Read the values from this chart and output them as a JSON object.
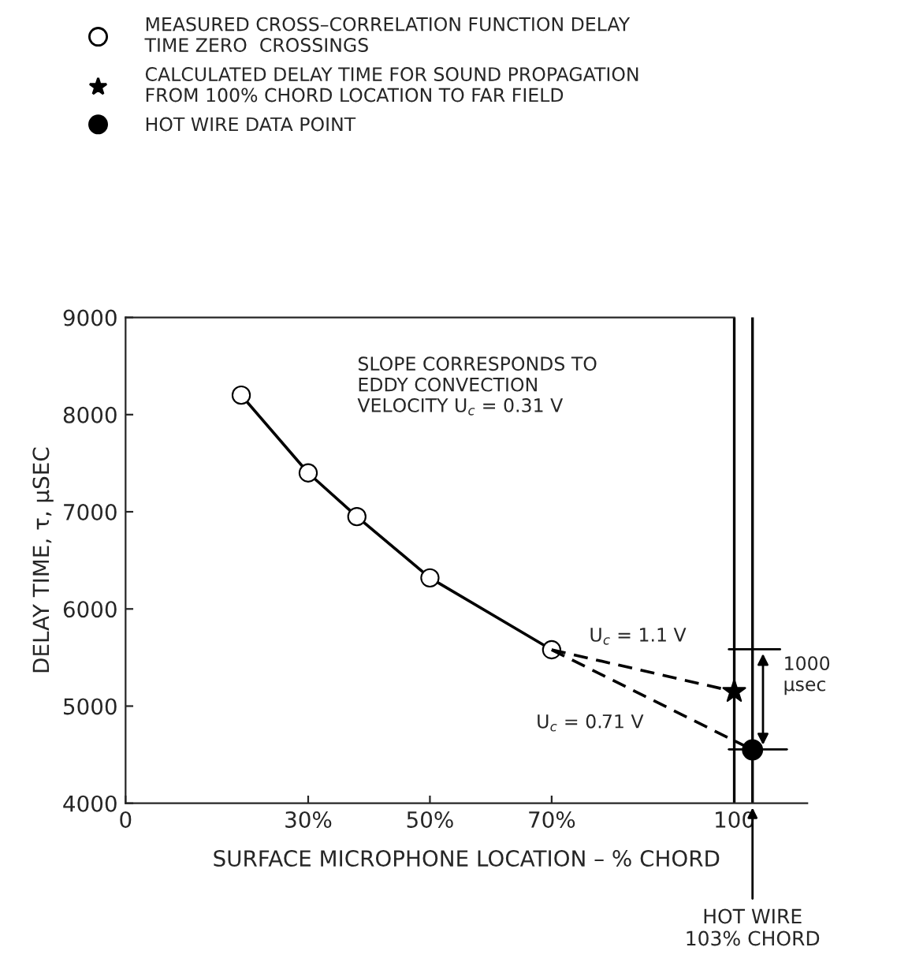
{
  "chart_data": {
    "type": "line",
    "xlabel": "SURFACE MICROPHONE LOCATION – % CHORD",
    "ylabel": "DELAY TIME, τ, μSEC",
    "xlim": [
      0,
      112
    ],
    "ylim": [
      4000,
      9000
    ],
    "xticks": [
      {
        "value": 0,
        "label": "0"
      },
      {
        "value": 30,
        "label": "30%"
      },
      {
        "value": 50,
        "label": "50%"
      },
      {
        "value": 70,
        "label": "70%"
      },
      {
        "value": 100,
        "label": "100"
      }
    ],
    "yticks": [
      4000,
      5000,
      6000,
      7000,
      8000,
      9000
    ],
    "grid": false,
    "legend": "top",
    "series": [
      {
        "name": "MEASURED CROSS–CORRELATION FUNCTION DELAY\nTIME ZERO  CROSSINGS",
        "marker": "circle",
        "line_style": "solid",
        "color": "#000000",
        "x": [
          19,
          30,
          38,
          50,
          70
        ],
        "values": [
          8200,
          7400,
          6950,
          6320,
          5580
        ]
      },
      {
        "type": "line",
        "marker": "none",
        "line_style": "dashed",
        "color": "#000000",
        "x": [
          70,
          100
        ],
        "values": [
          5580,
          5150
        ]
      },
      {
        "type": "line",
        "marker": "none",
        "line_style": "dashed",
        "color": "#000000",
        "x": [
          70,
          103
        ],
        "values": [
          5580,
          4550
        ]
      },
      {
        "name": "CALCULATED DELAY TIME FOR SOUND PROPAGATION\nFROM 100% CHORD LOCATION TO FAR FIELD",
        "type": "scatter",
        "marker": "star",
        "color": "#000000",
        "x": [
          100
        ],
        "values": [
          5150
        ]
      },
      {
        "name": "HOT WIRE DATA POINT",
        "type": "scatter",
        "marker": "filled_circle",
        "color": "#000000",
        "x": [
          103
        ],
        "values": [
          4550
        ]
      }
    ],
    "ref_lines": [
      {
        "axis": "x",
        "value": 100,
        "color": "#000000"
      },
      {
        "axis": "x",
        "value": 103,
        "color": "#000000",
        "label": "HOT WIRE\n103% CHORD"
      }
    ],
    "annotations": [
      "SLOPE CORRESPONDS TO\nEDDY CONVECTION\nVELOCITY U$_{c}$ = 0.31 V",
      {
        "text": "U$_{c}$ = 1.1 V",
        "x": 74,
        "y": 5580
      },
      "U$_{c}$ = 0.71 V",
      {
        "text": "1000\nμsec",
        "x": 103,
        "y": 4550
      }
    ]
  }
}
